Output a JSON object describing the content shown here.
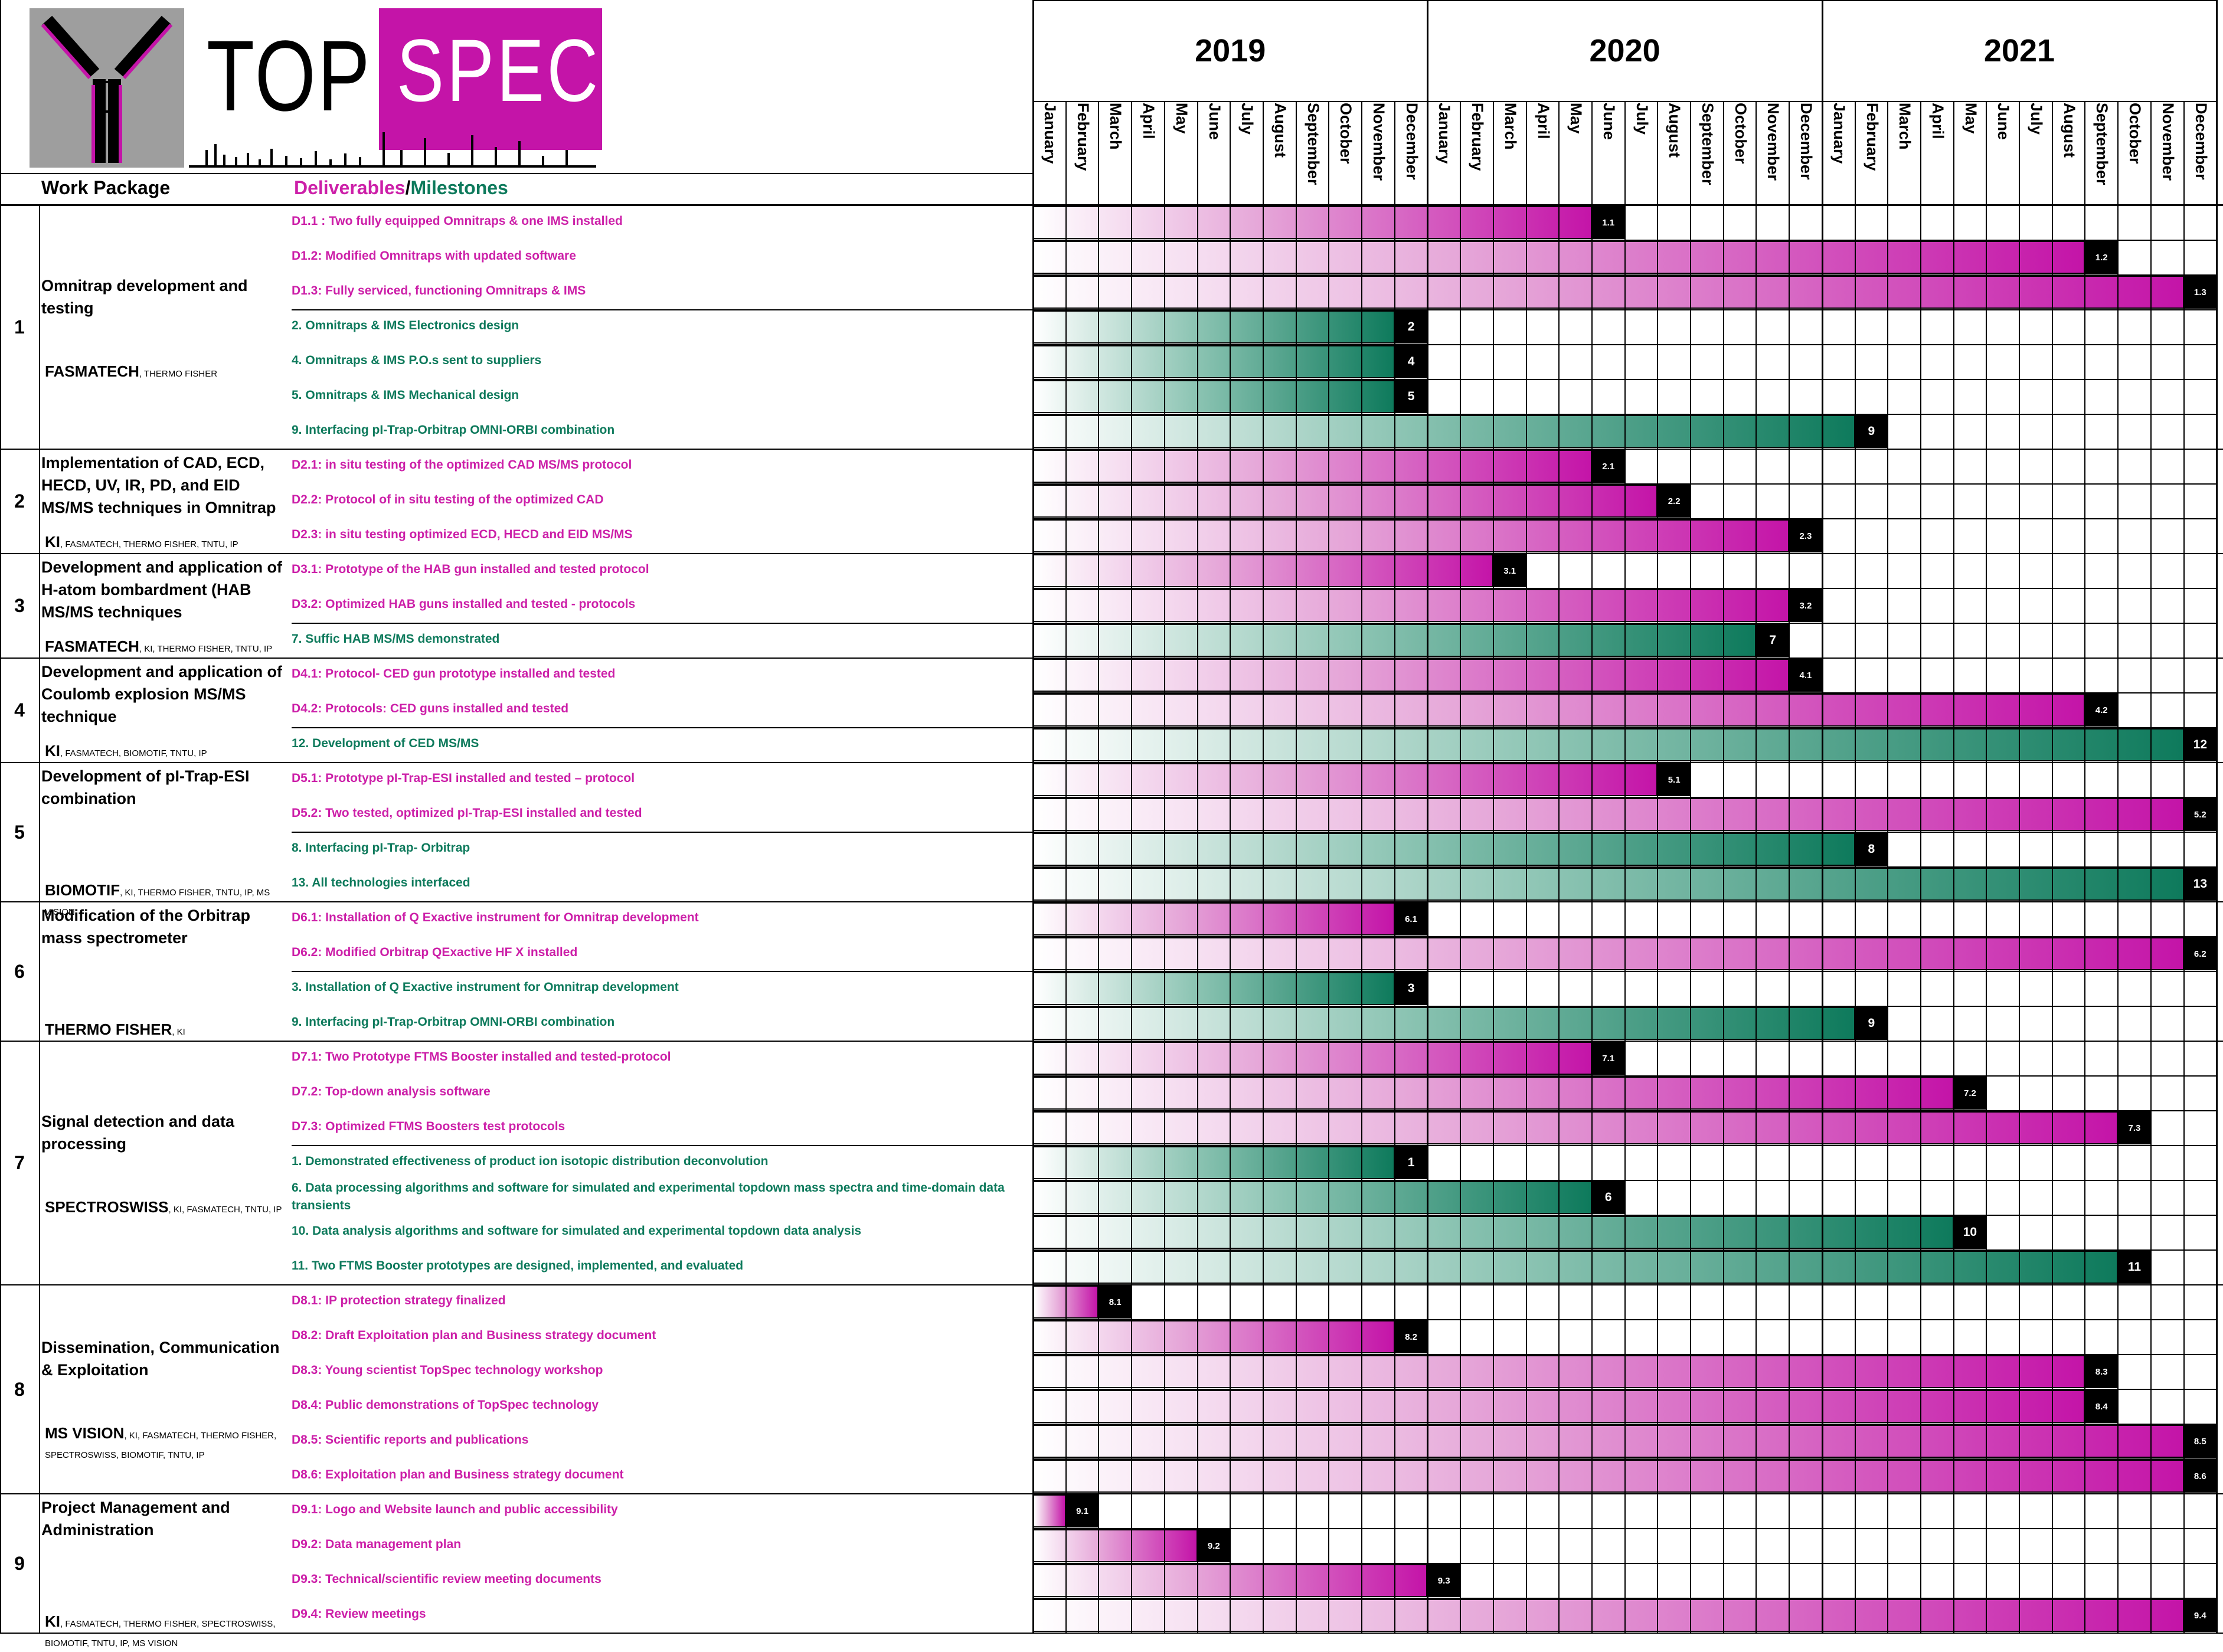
{
  "logo": {
    "top": "TOP",
    "spec": "SPEC"
  },
  "header": {
    "work_package": "Work Package",
    "deliverables": "Deliverables",
    "slash": "/",
    "milestones": "Milestones"
  },
  "years": [
    "2019",
    "2020",
    "2021"
  ],
  "months": [
    "January",
    "February",
    "March",
    "April",
    "May",
    "June",
    "July",
    "August",
    "September",
    "October",
    "November",
    "December"
  ],
  "work_packages": [
    {
      "num": "1",
      "title": "Omnitrap development and testing",
      "lead": "FASMATECH",
      "partners": ", THERMO FISHER",
      "items": [
        {
          "type": "D",
          "label": "D1.1 : Two fully equipped Omnitraps & one IMS installed",
          "end": 18,
          "code": "1.1"
        },
        {
          "type": "D",
          "label": "D1.2: Modified Omnitraps with updated software",
          "end": 33,
          "code": "1.2"
        },
        {
          "type": "D",
          "label": "D1.3: Fully serviced, functioning Omnitraps & IMS",
          "end": 36,
          "code": "1.3"
        },
        {
          "type": "M",
          "label": "2. Omnitraps & IMS Electronics design",
          "end": 12,
          "code": "2"
        },
        {
          "type": "M",
          "label": "4. Omnitraps & IMS P.O.s sent to suppliers",
          "end": 12,
          "code": "4"
        },
        {
          "type": "M",
          "label": "5. Omnitraps & IMS Mechanical design",
          "end": 12,
          "code": "5"
        },
        {
          "type": "M",
          "label": "9. Interfacing pI-Trap-Orbitrap OMNI-ORBI combination",
          "end": 26,
          "code": "9"
        }
      ]
    },
    {
      "num": "2",
      "title": "Implementation of CAD, ECD, HECD, UV, IR, PD, and EID MS/MS techniques in Omnitrap",
      "lead": "KI",
      "partners": ", FASMATECH, THERMO FISHER, TNTU, IP",
      "items": [
        {
          "type": "D",
          "label": "D2.1: in situ testing of the optimized CAD MS/MS protocol",
          "end": 18,
          "code": "2.1"
        },
        {
          "type": "D",
          "label": "D2.2: Protocol of in situ testing of the optimized CAD",
          "end": 20,
          "code": "2.2"
        },
        {
          "type": "D",
          "label": "D2.3: in situ testing optimized ECD, HECD and EID MS/MS",
          "end": 24,
          "code": "2.3"
        }
      ]
    },
    {
      "num": "3",
      "title": "Development and application of H-atom bombardment (HAB MS/MS techniques",
      "lead": "FASMATECH",
      "partners": ", KI, THERMO FISHER, TNTU, IP",
      "items": [
        {
          "type": "D",
          "label": "D3.1: Prototype of the HAB gun installed and tested protocol",
          "end": 15,
          "code": "3.1"
        },
        {
          "type": "D",
          "label": "D3.2: Optimized HAB guns installed and tested - protocols",
          "end": 24,
          "code": "3.2"
        },
        {
          "type": "M",
          "label": "7. Suffic HAB MS/MS demonstrated",
          "end": 23,
          "code": "7"
        }
      ]
    },
    {
      "num": "4",
      "title": "Development and application of Coulomb explosion MS/MS technique",
      "lead": "KI",
      "partners": ", FASMATECH, BIOMOTIF, TNTU, IP",
      "items": [
        {
          "type": "D",
          "label": "D4.1: Protocol- CED gun prototype installed and tested",
          "end": 24,
          "code": "4.1"
        },
        {
          "type": "D",
          "label": "D4.2: Protocols: CED guns installed and tested",
          "end": 33,
          "code": "4.2"
        },
        {
          "type": "M",
          "label": "12. Development of CED MS/MS",
          "end": 36,
          "code": "12"
        }
      ]
    },
    {
      "num": "5",
      "title": "Development of pI-Trap-ESI combination",
      "lead": "BIOMOTIF",
      "partners": ", KI, THERMO FISHER, TNTU, IP, MS VISION",
      "items": [
        {
          "type": "D",
          "label": "D5.1: Prototype pI-Trap-ESI installed and tested – protocol",
          "end": 20,
          "code": "5.1"
        },
        {
          "type": "D",
          "label": "D5.2: Two tested, optimized pI-Trap-ESI installed and tested",
          "end": 36,
          "code": "5.2"
        },
        {
          "type": "M",
          "label": "8. Interfacing pI-Trap- Orbitrap",
          "end": 26,
          "code": "8"
        },
        {
          "type": "M",
          "label": "13. All technologies interfaced",
          "end": 36,
          "code": "13"
        }
      ]
    },
    {
      "num": "6",
      "title": "Modification of the Orbitrap mass spectrometer",
      "lead": "THERMO FISHER",
      "partners": ", KI",
      "items": [
        {
          "type": "D",
          "label": "D6.1: Installation of Q Exactive instrument for Omnitrap development",
          "end": 12,
          "code": "6.1"
        },
        {
          "type": "D",
          "label": "D6.2: Modified Orbitrap QExactive HF X installed",
          "end": 36,
          "code": "6.2"
        },
        {
          "type": "M",
          "label": "3. Installation of Q Exactive instrument for Omnitrap development",
          "end": 12,
          "code": "3"
        },
        {
          "type": "M",
          "label": "9. Interfacing pI-Trap-Orbitrap OMNI-ORBI combination",
          "end": 26,
          "code": "9"
        }
      ]
    },
    {
      "num": "7",
      "title": "Signal detection and data processing",
      "lead": "SPECTROSWISS",
      "partners": ", KI, FASMATECH, TNTU, IP",
      "items": [
        {
          "type": "D",
          "label": "D7.1: Two Prototype FTMS Booster installed and tested-protocol",
          "end": 18,
          "code": "7.1"
        },
        {
          "type": "D",
          "label": "D7.2: Top-down analysis software",
          "end": 29,
          "code": "7.2"
        },
        {
          "type": "D",
          "label": "D7.3: Optimized FTMS Boosters test protocols",
          "end": 34,
          "code": "7.3"
        },
        {
          "type": "M",
          "label": "1. Demonstrated effectiveness of product ion isotopic distribution deconvolution",
          "end": 12,
          "code": "1"
        },
        {
          "type": "M",
          "label": "6. Data processing algorithms and software for simulated and experimental  topdown mass spectra and time-domain data transients",
          "end": 18,
          "code": "6"
        },
        {
          "type": "M",
          "label": "10. Data analysis algorithms and software for simulated and experimental topdown data analysis",
          "end": 29,
          "code": "10"
        },
        {
          "type": "M",
          "label": "11. Two FTMS Booster prototypes are designed, implemented, and evaluated",
          "end": 34,
          "code": "11"
        }
      ]
    },
    {
      "num": "8",
      "title": "Dissemination, Communication & Exploitation",
      "lead": "MS VISION",
      "partners": ", KI, FASMATECH, THERMO FISHER, SPECTROSWISS,  BIOMOTIF, TNTU, IP",
      "items": [
        {
          "type": "D",
          "label": "D8.1: IP protection strategy finalized",
          "end": 3,
          "code": "8.1"
        },
        {
          "type": "D",
          "label": "D8.2: Draft Exploitation plan and Business strategy document",
          "end": 12,
          "code": "8.2"
        },
        {
          "type": "D",
          "label": "D8.3: Young scientist TopSpec technology workshop",
          "end": 33,
          "code": "8.3"
        },
        {
          "type": "D",
          "label": "D8.4: Public demonstrations of TopSpec technology",
          "end": 33,
          "code": "8.4"
        },
        {
          "type": "D",
          "label": "D8.5: Scientific reports and publications",
          "end": 36,
          "code": "8.5"
        },
        {
          "type": "D",
          "label": "D8.6: Exploitation plan and Business strategy document",
          "end": 36,
          "code": "8.6"
        }
      ]
    },
    {
      "num": "9",
      "title": "Project Management and Administration",
      "lead": "KI",
      "partners": ", FASMATECH, THERMO FISHER, SPECTROSWISS, BIOMOTIF, TNTU, IP, MS VISION",
      "items": [
        {
          "type": "D",
          "label": "D9.1: Logo and Website launch and public accessibility",
          "end": 2,
          "code": "9.1"
        },
        {
          "type": "D",
          "label": "D9.2: Data management plan",
          "end": 6,
          "code": "9.2"
        },
        {
          "type": "D",
          "label": "D9.3: Technical/scientific review meeting documents",
          "end": 13,
          "code": "9.3"
        },
        {
          "type": "D",
          "label": "D9.4: Review meetings",
          "end": 36,
          "code": "9.4"
        }
      ]
    }
  ]
}
